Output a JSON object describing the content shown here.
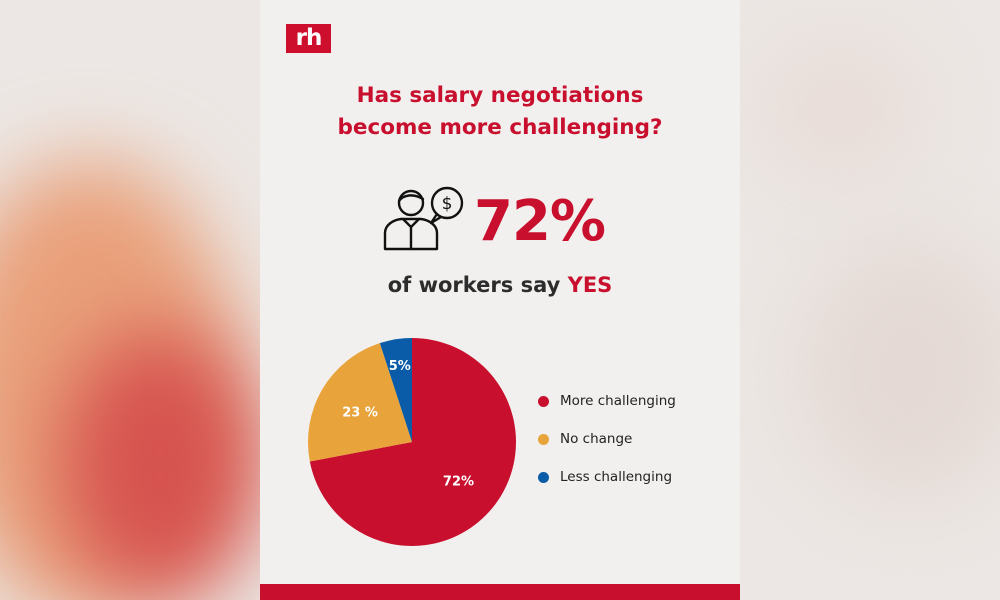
{
  "logo": {
    "text": "rh"
  },
  "title": {
    "line1": "Has salary negotiations",
    "line2": "become more challenging?"
  },
  "highlight": {
    "value": "72%",
    "prefix": "of workers say ",
    "emphasis": "YES"
  },
  "icons": {
    "person": "person-with-dollar-speech-bubble-icon"
  },
  "colors": {
    "brand_red": "#c8102e",
    "orange": "#e8a33a",
    "blue": "#0a5ca8",
    "background": "#f2f0ee"
  },
  "chart_data": {
    "type": "pie",
    "slices": [
      {
        "label": "More challenging",
        "value": 72,
        "data_label": "72%",
        "color": "#c8102e"
      },
      {
        "label": "No change",
        "value": 23,
        "data_label": "23 %",
        "color": "#e8a33a"
      },
      {
        "label": "Less challenging",
        "value": 5,
        "data_label": "5%",
        "color": "#0a5ca8"
      }
    ],
    "legend_position": "right"
  }
}
